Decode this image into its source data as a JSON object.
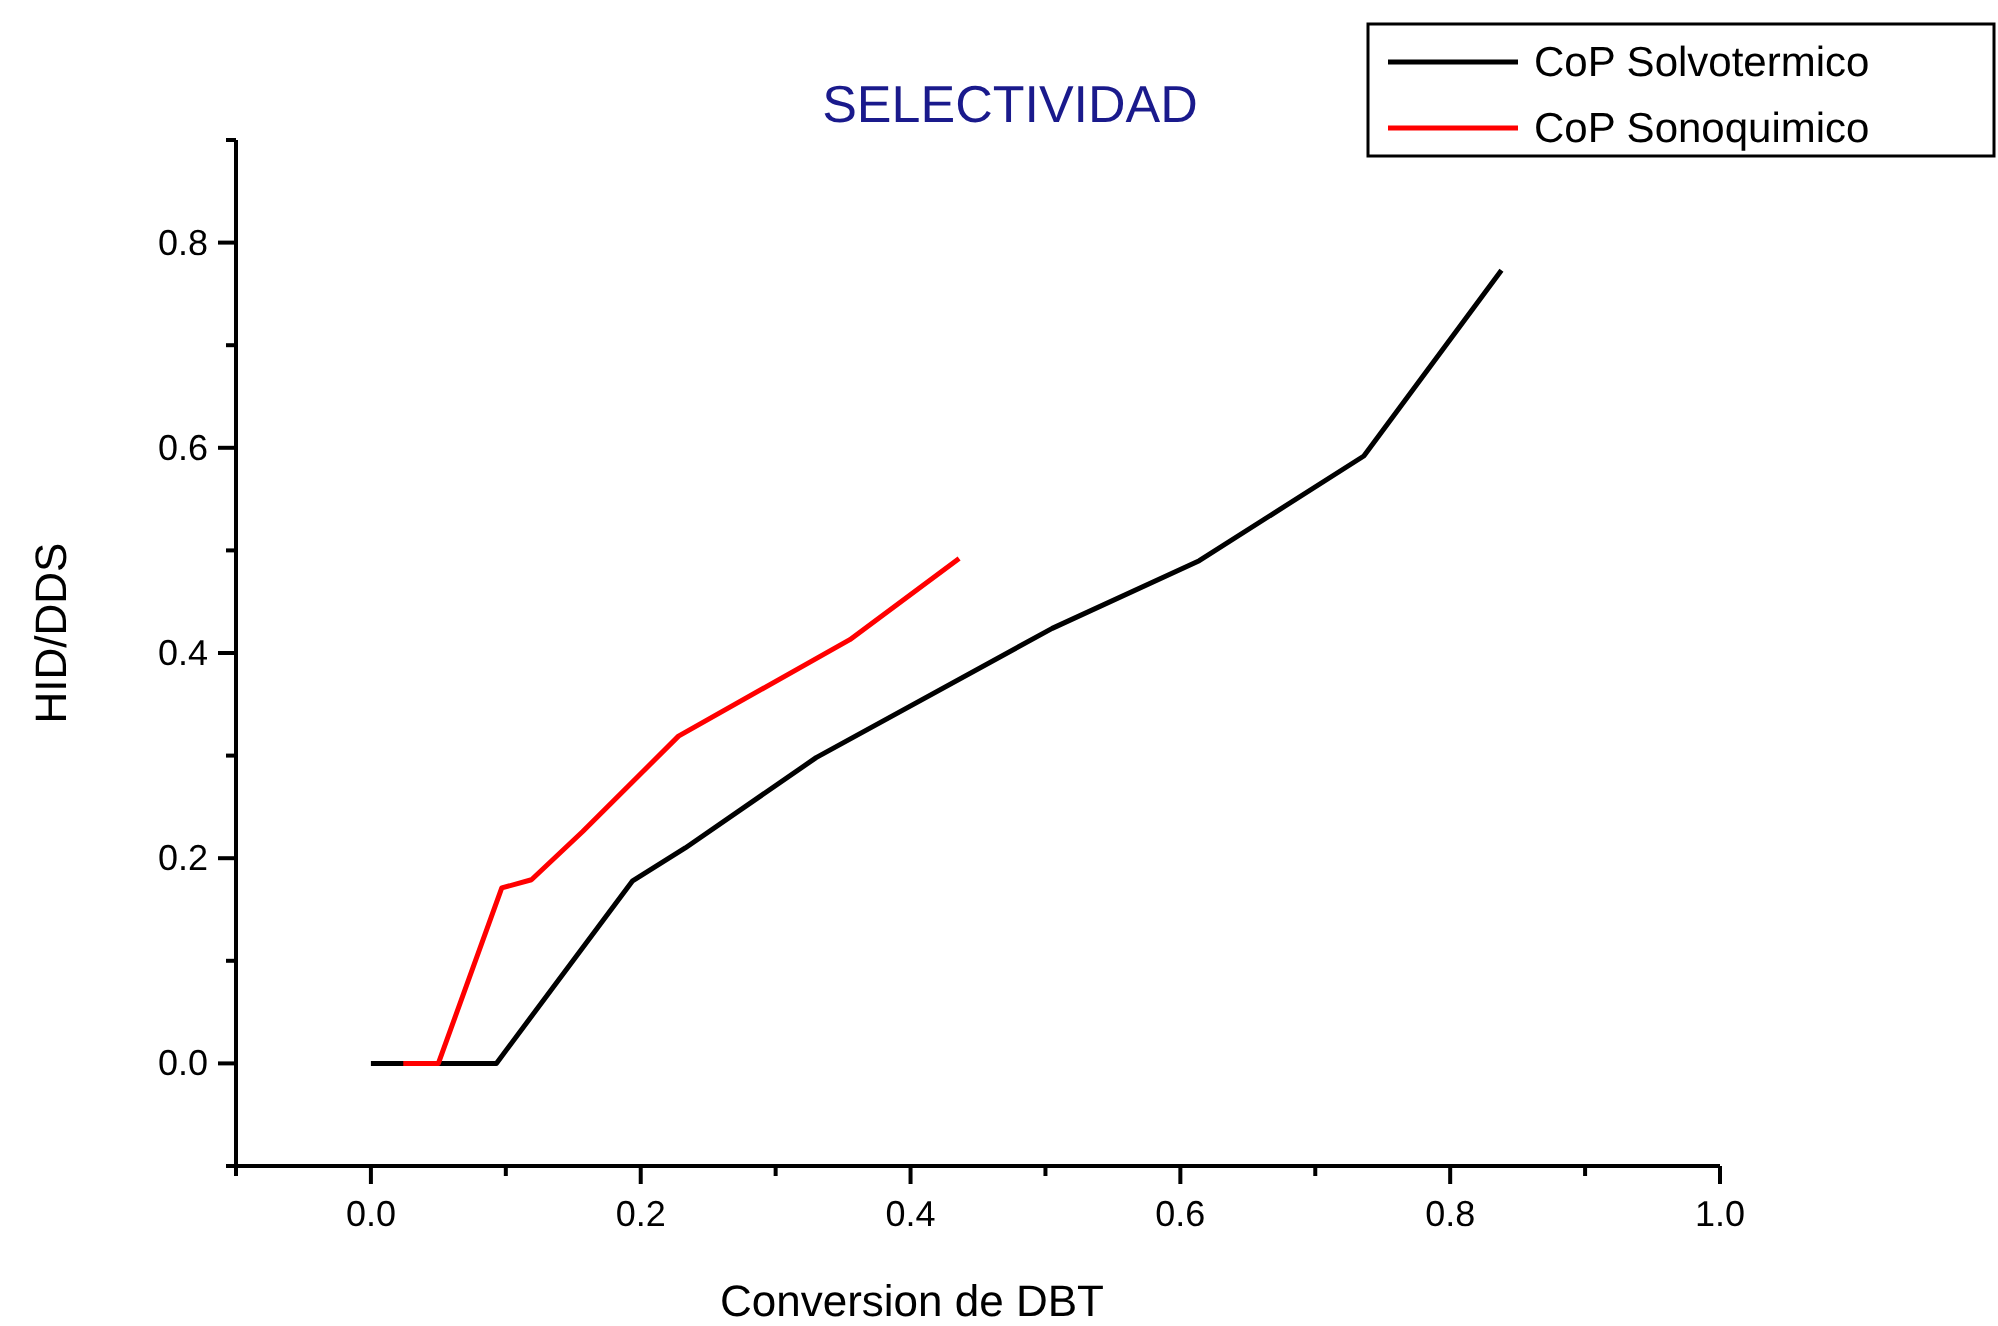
{
  "chart_data": {
    "type": "line",
    "title": "SELECTIVIDAD",
    "xlabel": "Conversion de DBT",
    "ylabel": "HID/DDS",
    "xlim": [
      -0.1,
      1.0
    ],
    "ylim": [
      -0.1,
      0.9
    ],
    "xticks": [
      {
        "value": -0.1,
        "label": null
      },
      {
        "value": 0,
        "label": "0.0"
      },
      {
        "value": 0.1,
        "label": null
      },
      {
        "value": 0.2,
        "label": "0.2"
      },
      {
        "value": 0.3,
        "label": null
      },
      {
        "value": 0.4,
        "label": "0.4"
      },
      {
        "value": 0.5,
        "label": null
      },
      {
        "value": 0.6,
        "label": "0.6"
      },
      {
        "value": 0.7,
        "label": null
      },
      {
        "value": 0.8,
        "label": "0.8"
      },
      {
        "value": 0.9,
        "label": null
      },
      {
        "value": 1.0,
        "label": "1.0"
      }
    ],
    "yticks": [
      {
        "value": -0.1,
        "label": null
      },
      {
        "value": 0,
        "label": "0.0"
      },
      {
        "value": 0.1,
        "label": null
      },
      {
        "value": 0.2,
        "label": "0.2"
      },
      {
        "value": 0.3,
        "label": null
      },
      {
        "value": 0.4,
        "label": "0.4"
      },
      {
        "value": 0.5,
        "label": null
      },
      {
        "value": 0.6,
        "label": "0.6"
      },
      {
        "value": 0.7,
        "label": null
      },
      {
        "value": 0.8,
        "label": "0.8"
      },
      {
        "value": 0.9,
        "label": null
      }
    ],
    "legend": "top right",
    "grid": false,
    "marker": "none",
    "line_style": "solid",
    "series": [
      {
        "name": "CoP Solvotermico",
        "color": "#000000",
        "x": [
          0,
          0.093,
          0.194,
          0.233,
          0.33,
          0.505,
          0.614,
          0.736,
          0.838
        ],
        "values": [
          0,
          0,
          0.178,
          0.21,
          0.298,
          0.424,
          0.49,
          0.592,
          0.773
        ]
      },
      {
        "name": "CoP Sonoquimico",
        "color": "#ff0000",
        "x": [
          0.024,
          0.05,
          0.097,
          0.119,
          0.157,
          0.228,
          0.355,
          0.436
        ],
        "values": [
          0,
          0,
          0.171,
          0.179,
          0.226,
          0.319,
          0.413,
          0.492
        ]
      }
    ]
  }
}
